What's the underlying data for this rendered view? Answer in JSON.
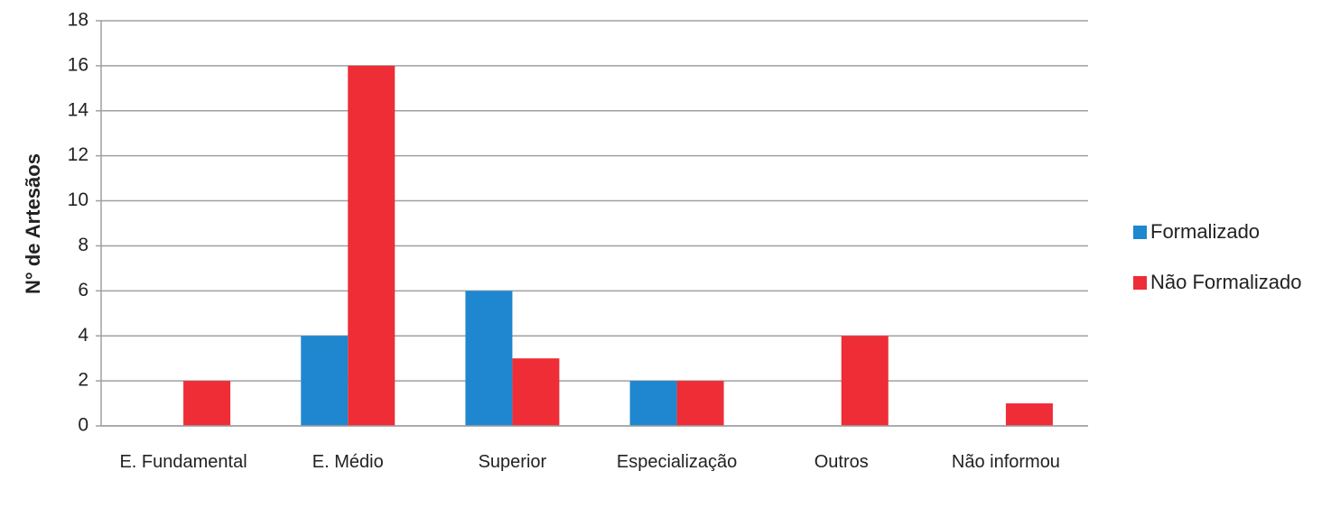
{
  "chart_data": {
    "type": "bar",
    "y_label": "N° de Artesãos",
    "categories": [
      "E. Fundamental",
      "E. Médio",
      "Superior",
      "Especialização",
      "Outros",
      "Não informou"
    ],
    "series": [
      {
        "name": "Formalizado",
        "color": "#1f87cf",
        "values": [
          0,
          4,
          6,
          2,
          0,
          0
        ]
      },
      {
        "name": "Não Formalizado",
        "color": "#ee2d36",
        "values": [
          2,
          16,
          3,
          2,
          4,
          1
        ]
      }
    ],
    "ylim": [
      0,
      18
    ],
    "yticks": [
      0,
      2,
      4,
      6,
      8,
      10,
      12,
      14,
      16,
      18
    ],
    "grid": true,
    "legend": "right"
  }
}
